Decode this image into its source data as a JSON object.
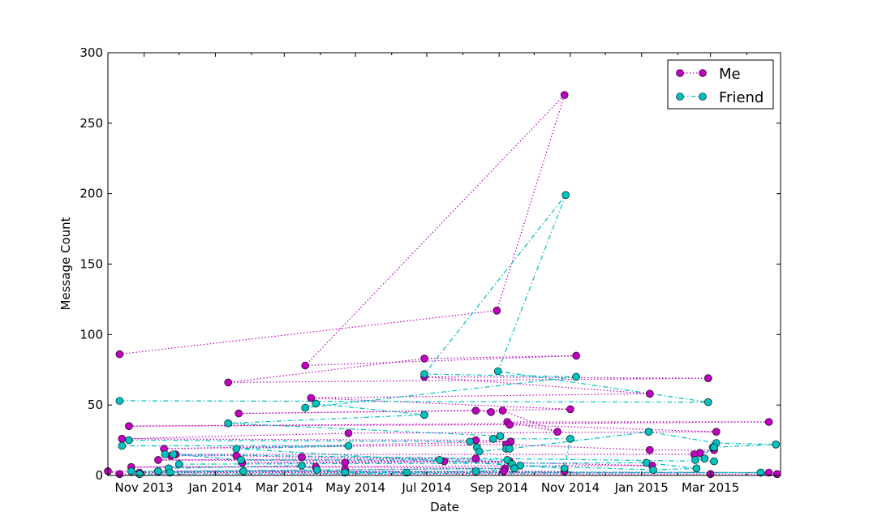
{
  "chart_data": {
    "type": "line",
    "title": "",
    "xlabel": "Date",
    "ylabel": "Message Count",
    "x_tick_labels": [
      "Nov 2013",
      "Jan 2014",
      "Mar 2014",
      "May 2014",
      "Jul 2014",
      "Sep 2014",
      "Nov 2014",
      "Jan 2015",
      "Mar 2015"
    ],
    "y_tick_labels": [
      "0",
      "50",
      "100",
      "150",
      "200",
      "250",
      "300"
    ],
    "xlim": [
      "2013-10-01",
      "2015-04-30"
    ],
    "ylim": [
      0,
      300
    ],
    "grid": false,
    "legend_position": "top-right",
    "series": [
      {
        "name": "Me",
        "color": "#bf00bf",
        "line_style": "dotted",
        "marker": "circle",
        "points": [
          [
            "2013-10-11",
            86
          ],
          [
            "2014-08-30",
            117
          ],
          [
            "2014-10-27",
            270
          ],
          [
            "2014-03-19",
            78
          ],
          [
            "2014-11-06",
            85
          ],
          [
            "2014-06-29",
            83
          ],
          [
            "2014-01-12",
            66
          ],
          [
            "2015-02-27",
            69
          ],
          [
            "2014-06-29",
            70
          ],
          [
            "2015-01-08",
            58
          ],
          [
            "2014-03-24",
            55
          ],
          [
            "2014-11-01",
            47
          ],
          [
            "2014-01-21",
            44
          ],
          [
            "2014-08-12",
            46
          ],
          [
            "2014-08-25",
            45
          ],
          [
            "2014-09-04",
            46
          ],
          [
            "2014-10-21",
            31
          ],
          [
            "2014-09-08",
            38
          ],
          [
            "2015-04-20",
            38
          ],
          [
            "2013-10-19",
            35
          ],
          [
            "2014-09-10",
            36
          ],
          [
            "2015-03-06",
            31
          ],
          [
            "2014-04-25",
            30
          ],
          [
            "2013-10-13",
            26
          ],
          [
            "2014-08-12",
            25
          ],
          [
            "2014-09-11",
            24
          ],
          [
            "2013-11-18",
            19
          ],
          [
            "2014-09-07",
            22
          ],
          [
            "2015-01-08",
            18
          ],
          [
            "2015-03-04",
            18
          ],
          [
            "2015-02-20",
            16
          ],
          [
            "2015-02-15",
            15
          ],
          [
            "2013-11-28",
            15
          ],
          [
            "2013-11-24",
            14
          ],
          [
            "2014-01-19",
            14
          ],
          [
            "2014-03-16",
            13
          ],
          [
            "2014-08-12",
            12
          ],
          [
            "2013-11-13",
            11
          ],
          [
            "2014-09-10",
            10
          ],
          [
            "2014-04-22",
            9
          ],
          [
            "2014-01-24",
            9
          ],
          [
            "2014-07-16",
            10
          ],
          [
            "2015-01-10",
            7
          ],
          [
            "2013-10-21",
            6
          ],
          [
            "2014-03-28",
            6
          ],
          [
            "2014-09-06",
            5
          ],
          [
            "2014-04-22",
            4
          ],
          [
            "2013-11-13",
            3
          ],
          [
            "2014-09-05",
            3
          ],
          [
            "2014-10-27",
            3
          ],
          [
            "2013-10-28",
            2
          ],
          [
            "2015-04-13",
            2
          ],
          [
            "2015-04-20",
            2
          ],
          [
            "2013-10-01",
            3
          ],
          [
            "2013-10-11",
            1
          ],
          [
            "2015-03-01",
            1
          ],
          [
            "2015-04-27",
            1
          ]
        ]
      },
      {
        "name": "Friend",
        "color": "#00bfbf",
        "line_style": "dash-dot",
        "marker": "circle",
        "points": [
          [
            "2013-10-11",
            53
          ],
          [
            "2015-02-27",
            52
          ],
          [
            "2014-08-31",
            74
          ],
          [
            "2014-10-28",
            199
          ],
          [
            "2014-06-29",
            72
          ],
          [
            "2014-11-06",
            70
          ],
          [
            "2014-03-19",
            48
          ],
          [
            "2014-03-28",
            51
          ],
          [
            "2014-06-29",
            43
          ],
          [
            "2014-01-12",
            37
          ],
          [
            "2014-09-02",
            28
          ],
          [
            "2014-08-27",
            26
          ],
          [
            "2014-11-01",
            26
          ],
          [
            "2014-10-27",
            5
          ],
          [
            "2014-01-19",
            19
          ],
          [
            "2014-04-25",
            21
          ],
          [
            "2013-10-13",
            21
          ],
          [
            "2013-10-19",
            25
          ],
          [
            "2014-08-07",
            24
          ],
          [
            "2014-08-13",
            20
          ],
          [
            "2014-08-15",
            17
          ],
          [
            "2014-09-07",
            19
          ],
          [
            "2014-09-10",
            19
          ],
          [
            "2015-01-07",
            31
          ],
          [
            "2015-03-06",
            23
          ],
          [
            "2015-04-26",
            22
          ],
          [
            "2015-03-03",
            20
          ],
          [
            "2015-03-04",
            20
          ],
          [
            "2015-02-16",
            11
          ],
          [
            "2015-02-24",
            12
          ],
          [
            "2015-03-04",
            10
          ],
          [
            "2013-11-19",
            15
          ],
          [
            "2013-11-26",
            15
          ],
          [
            "2014-01-23",
            11
          ],
          [
            "2014-07-12",
            11
          ],
          [
            "2014-09-08",
            11
          ],
          [
            "2014-09-12",
            8
          ],
          [
            "2014-09-19",
            7
          ],
          [
            "2015-01-11",
            4
          ],
          [
            "2015-02-17",
            5
          ],
          [
            "2015-01-05",
            9
          ],
          [
            "2013-12-01",
            8
          ],
          [
            "2013-11-22",
            5
          ],
          [
            "2014-03-16",
            7
          ],
          [
            "2014-03-29",
            4
          ],
          [
            "2014-04-22",
            2
          ],
          [
            "2014-06-14",
            2
          ],
          [
            "2014-08-12",
            3
          ],
          [
            "2014-09-14",
            5
          ],
          [
            "2013-11-13",
            3
          ],
          [
            "2013-10-21",
            3
          ],
          [
            "2013-11-23",
            2
          ],
          [
            "2014-01-25",
            3
          ],
          [
            "2015-04-13",
            2
          ],
          [
            "2013-10-28",
            1
          ]
        ]
      }
    ]
  }
}
